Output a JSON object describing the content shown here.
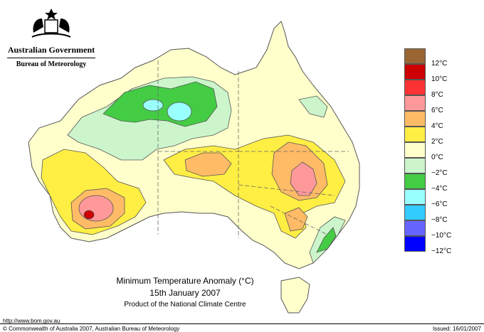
{
  "header": {
    "government": "Australian Government",
    "bureau": "Bureau of Meteorology"
  },
  "map": {
    "title": "Minimum Temperature Anomaly (°C)",
    "date": "15th January 2007",
    "product": "Product of the National Climate Centre"
  },
  "legend": {
    "items": [
      {
        "label": "",
        "color": "#996633"
      },
      {
        "label": "12°C",
        "color": "#cc0000"
      },
      {
        "label": "10°C",
        "color": "#ff3333"
      },
      {
        "label": "8°C",
        "color": "#ff9999"
      },
      {
        "label": "6°C",
        "color": "#ffbb66"
      },
      {
        "label": "4°C",
        "color": "#ffee44"
      },
      {
        "label": "2°C",
        "color": "#ffffcc"
      },
      {
        "label": "0°C",
        "color": "#ccf5cc"
      },
      {
        "label": "−2°C",
        "color": "#44cc44"
      },
      {
        "label": "−4°C",
        "color": "#99ffff"
      },
      {
        "label": "−6°C",
        "color": "#33ccff"
      },
      {
        "label": "−8°C",
        "color": "#6666ff"
      },
      {
        "label": "−10°C",
        "color": "#0000ff"
      },
      {
        "label": "−12°C",
        "color": ""
      }
    ]
  },
  "footer": {
    "url": "http://www.bom.gov.au",
    "copyright": "© Commonwealth of Australia 2007, Australian Bureau of Meteorology",
    "issued": "Issued: 16/01/2007"
  }
}
